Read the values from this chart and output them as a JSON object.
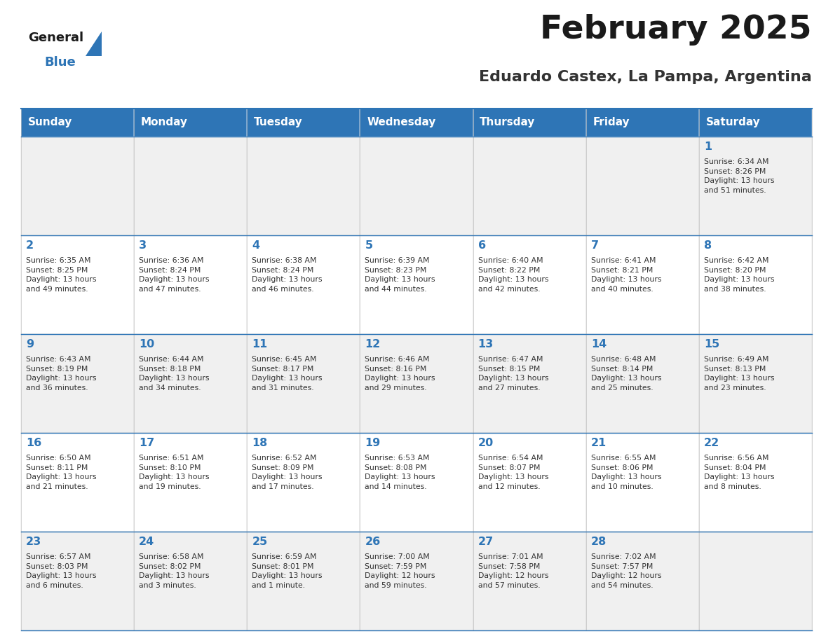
{
  "title": "February 2025",
  "subtitle": "Eduardo Castex, La Pampa, Argentina",
  "header_bg": "#2e75b6",
  "header_text_color": "#ffffff",
  "cell_bg_light": "#f0f0f0",
  "cell_bg_white": "#ffffff",
  "border_color": "#2e75b6",
  "title_color": "#1a1a1a",
  "subtitle_color": "#333333",
  "day_number_color": "#2e75b6",
  "cell_text_color": "#333333",
  "days_of_week": [
    "Sunday",
    "Monday",
    "Tuesday",
    "Wednesday",
    "Thursday",
    "Friday",
    "Saturday"
  ],
  "logo_general_color": "#1a1a1a",
  "logo_blue_color": "#2e75b6",
  "weeks": [
    [
      {
        "day": null,
        "text": ""
      },
      {
        "day": null,
        "text": ""
      },
      {
        "day": null,
        "text": ""
      },
      {
        "day": null,
        "text": ""
      },
      {
        "day": null,
        "text": ""
      },
      {
        "day": null,
        "text": ""
      },
      {
        "day": 1,
        "text": "Sunrise: 6:34 AM\nSunset: 8:26 PM\nDaylight: 13 hours\nand 51 minutes."
      }
    ],
    [
      {
        "day": 2,
        "text": "Sunrise: 6:35 AM\nSunset: 8:25 PM\nDaylight: 13 hours\nand 49 minutes."
      },
      {
        "day": 3,
        "text": "Sunrise: 6:36 AM\nSunset: 8:24 PM\nDaylight: 13 hours\nand 47 minutes."
      },
      {
        "day": 4,
        "text": "Sunrise: 6:38 AM\nSunset: 8:24 PM\nDaylight: 13 hours\nand 46 minutes."
      },
      {
        "day": 5,
        "text": "Sunrise: 6:39 AM\nSunset: 8:23 PM\nDaylight: 13 hours\nand 44 minutes."
      },
      {
        "day": 6,
        "text": "Sunrise: 6:40 AM\nSunset: 8:22 PM\nDaylight: 13 hours\nand 42 minutes."
      },
      {
        "day": 7,
        "text": "Sunrise: 6:41 AM\nSunset: 8:21 PM\nDaylight: 13 hours\nand 40 minutes."
      },
      {
        "day": 8,
        "text": "Sunrise: 6:42 AM\nSunset: 8:20 PM\nDaylight: 13 hours\nand 38 minutes."
      }
    ],
    [
      {
        "day": 9,
        "text": "Sunrise: 6:43 AM\nSunset: 8:19 PM\nDaylight: 13 hours\nand 36 minutes."
      },
      {
        "day": 10,
        "text": "Sunrise: 6:44 AM\nSunset: 8:18 PM\nDaylight: 13 hours\nand 34 minutes."
      },
      {
        "day": 11,
        "text": "Sunrise: 6:45 AM\nSunset: 8:17 PM\nDaylight: 13 hours\nand 31 minutes."
      },
      {
        "day": 12,
        "text": "Sunrise: 6:46 AM\nSunset: 8:16 PM\nDaylight: 13 hours\nand 29 minutes."
      },
      {
        "day": 13,
        "text": "Sunrise: 6:47 AM\nSunset: 8:15 PM\nDaylight: 13 hours\nand 27 minutes."
      },
      {
        "day": 14,
        "text": "Sunrise: 6:48 AM\nSunset: 8:14 PM\nDaylight: 13 hours\nand 25 minutes."
      },
      {
        "day": 15,
        "text": "Sunrise: 6:49 AM\nSunset: 8:13 PM\nDaylight: 13 hours\nand 23 minutes."
      }
    ],
    [
      {
        "day": 16,
        "text": "Sunrise: 6:50 AM\nSunset: 8:11 PM\nDaylight: 13 hours\nand 21 minutes."
      },
      {
        "day": 17,
        "text": "Sunrise: 6:51 AM\nSunset: 8:10 PM\nDaylight: 13 hours\nand 19 minutes."
      },
      {
        "day": 18,
        "text": "Sunrise: 6:52 AM\nSunset: 8:09 PM\nDaylight: 13 hours\nand 17 minutes."
      },
      {
        "day": 19,
        "text": "Sunrise: 6:53 AM\nSunset: 8:08 PM\nDaylight: 13 hours\nand 14 minutes."
      },
      {
        "day": 20,
        "text": "Sunrise: 6:54 AM\nSunset: 8:07 PM\nDaylight: 13 hours\nand 12 minutes."
      },
      {
        "day": 21,
        "text": "Sunrise: 6:55 AM\nSunset: 8:06 PM\nDaylight: 13 hours\nand 10 minutes."
      },
      {
        "day": 22,
        "text": "Sunrise: 6:56 AM\nSunset: 8:04 PM\nDaylight: 13 hours\nand 8 minutes."
      }
    ],
    [
      {
        "day": 23,
        "text": "Sunrise: 6:57 AM\nSunset: 8:03 PM\nDaylight: 13 hours\nand 6 minutes."
      },
      {
        "day": 24,
        "text": "Sunrise: 6:58 AM\nSunset: 8:02 PM\nDaylight: 13 hours\nand 3 minutes."
      },
      {
        "day": 25,
        "text": "Sunrise: 6:59 AM\nSunset: 8:01 PM\nDaylight: 13 hours\nand 1 minute."
      },
      {
        "day": 26,
        "text": "Sunrise: 7:00 AM\nSunset: 7:59 PM\nDaylight: 12 hours\nand 59 minutes."
      },
      {
        "day": 27,
        "text": "Sunrise: 7:01 AM\nSunset: 7:58 PM\nDaylight: 12 hours\nand 57 minutes."
      },
      {
        "day": 28,
        "text": "Sunrise: 7:02 AM\nSunset: 7:57 PM\nDaylight: 12 hours\nand 54 minutes."
      },
      {
        "day": null,
        "text": ""
      }
    ]
  ]
}
